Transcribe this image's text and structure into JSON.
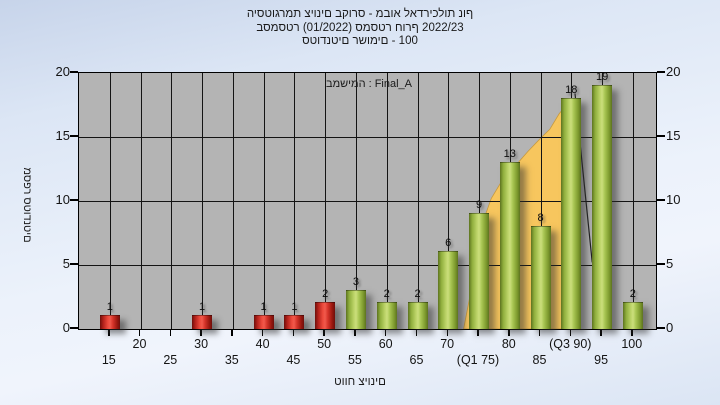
{
  "title": {
    "line1": "היסטוגרמת ציונים בקורס - מבוא לאדריכלות נוף",
    "line2": "בסמסטר  (01/2022)  סמסטר חורף 2022/23",
    "line3": "סטודנטים רשומים - 100"
  },
  "legend": "במשימה : Final_A",
  "y_axis": {
    "label": "מספר סטודנטים",
    "ticks": [
      "20",
      "15",
      "10",
      "5",
      "0"
    ]
  },
  "x_axis": {
    "label": "טווח ציונים",
    "upper_row": [
      {
        "pos": 20,
        "text": "20"
      },
      {
        "pos": 30,
        "text": "30"
      },
      {
        "pos": 40,
        "text": "40"
      },
      {
        "pos": 50,
        "text": "50"
      },
      {
        "pos": 60,
        "text": "60"
      },
      {
        "pos": 70,
        "text": "70"
      },
      {
        "pos": 80,
        "text": "80"
      },
      {
        "pos": 90,
        "text": "(Q3 90)"
      },
      {
        "pos": 100,
        "text": "100"
      }
    ],
    "lower_row": [
      {
        "pos": 15,
        "text": "15"
      },
      {
        "pos": 25,
        "text": "25"
      },
      {
        "pos": 35,
        "text": "35"
      },
      {
        "pos": 45,
        "text": "45"
      },
      {
        "pos": 55,
        "text": "55"
      },
      {
        "pos": 65,
        "text": "65"
      },
      {
        "pos": 75,
        "text": "(Q1 75)"
      },
      {
        "pos": 85,
        "text": "85"
      },
      {
        "pos": 95,
        "text": "95"
      }
    ]
  },
  "chart_data": {
    "type": "bar",
    "title": "היסטוגרמת ציונים בקורס - מבוא לאדריכלות נוף בסמסטר (01/2022) סמסטר חורף 2022/23 סטודנטים רשומים - 100",
    "xlabel": "טווח ציונים",
    "ylabel": "מספר סטודנטים",
    "ylim": [
      0,
      20
    ],
    "xlim": [
      10,
      103.75
    ],
    "grid": true,
    "categories": [
      15,
      30,
      40,
      45,
      50,
      55,
      60,
      65,
      70,
      75,
      80,
      85,
      90,
      95,
      100
    ],
    "values": [
      1,
      1,
      1,
      1,
      2,
      3,
      2,
      2,
      6,
      9,
      13,
      8,
      18,
      19,
      2
    ],
    "bars": [
      {
        "grade": 15,
        "value": 1,
        "color": "red"
      },
      {
        "grade": 30,
        "value": 1,
        "color": "red"
      },
      {
        "grade": 40,
        "value": 1,
        "color": "red"
      },
      {
        "grade": 45,
        "value": 1,
        "color": "red"
      },
      {
        "grade": 50,
        "value": 2,
        "color": "red"
      },
      {
        "grade": 55,
        "value": 3,
        "color": "green"
      },
      {
        "grade": 60,
        "value": 2,
        "color": "green"
      },
      {
        "grade": 65,
        "value": 2,
        "color": "green"
      },
      {
        "grade": 70,
        "value": 6,
        "color": "green"
      },
      {
        "grade": 75,
        "value": 9,
        "color": "green"
      },
      {
        "grade": 80,
        "value": 13,
        "color": "green"
      },
      {
        "grade": 85,
        "value": 8,
        "color": "green"
      },
      {
        "grade": 90,
        "value": 18,
        "color": "green"
      },
      {
        "grade": 95,
        "value": 19,
        "color": "green"
      },
      {
        "grade": 100,
        "value": 2,
        "color": "green"
      }
    ],
    "overlay_area": {
      "type": "area",
      "fill_color": "#F7C65E",
      "edge_color": "#c79a3e",
      "curve_points": [
        [
          72.5,
          0
        ],
        [
          73.5,
          2.5
        ],
        [
          74.5,
          5.5
        ],
        [
          75.5,
          8.2
        ],
        [
          77,
          10.2
        ],
        [
          79,
          11.8
        ],
        [
          81,
          12.8
        ],
        [
          83,
          13.9
        ],
        [
          85,
          14.9
        ],
        [
          86.5,
          15.6
        ],
        [
          88,
          16.8
        ],
        [
          89,
          17.4
        ],
        [
          90,
          18
        ]
      ],
      "drop_line": [
        [
          90.6,
          18.4
        ],
        [
          93.4,
          5.2
        ]
      ],
      "drop_line_color": "#222222"
    }
  },
  "colors": {
    "background_top": "#c7d4ea",
    "background_mid": "#ecf2fb",
    "plot_background": "#b4b4b4",
    "grid": "#141414",
    "bar_red": "#ee4b3d",
    "bar_green": "#bcd468",
    "overlay_yellow": "#F7C65E",
    "text": "#111111"
  }
}
